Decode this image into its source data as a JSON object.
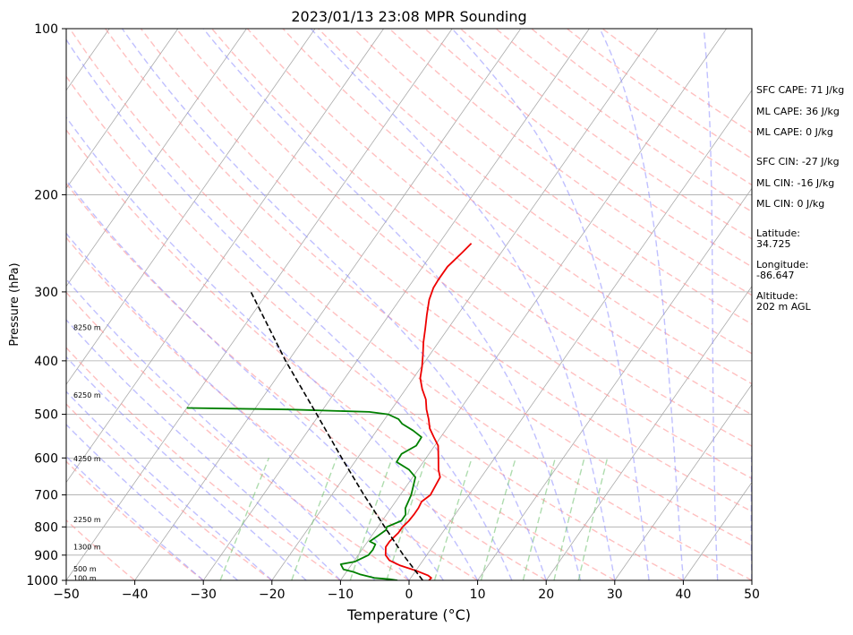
{
  "chart_data": {
    "type": "line",
    "title": "2023/01/13 23:08 MPR Sounding",
    "xlabel": "Temperature (°C)",
    "ylabel": "Pressure (hPa)",
    "xlim": [
      -50,
      50
    ],
    "ylim_pressure": [
      1000,
      100
    ],
    "y_scale": "log",
    "x_ticks": [
      -50,
      -40,
      -30,
      -20,
      -10,
      0,
      10,
      20,
      30,
      40,
      50
    ],
    "x_tick_labels": [
      "−50",
      "−40",
      "−30",
      "−20",
      "−10",
      "0",
      "10",
      "20",
      "30",
      "40",
      "50"
    ],
    "y_ticks": [
      1000,
      900,
      800,
      700,
      600,
      500,
      400,
      300,
      200,
      100
    ],
    "y_tick_labels": [
      "1000",
      "900",
      "800",
      "700",
      "600",
      "500",
      "400",
      "300",
      "200",
      "100"
    ],
    "horizontal_grid": true,
    "colors": {
      "temperature": "#ee0000",
      "dewpoint": "#008000",
      "parcel": "#000000",
      "isotherm": "#aaaaaa",
      "dry_adiabat": "#ff8c8c",
      "moist_adiabat": "#8c8cff",
      "mixing_ratio": "#6cbf6c"
    },
    "series": [
      {
        "key": "temperature",
        "points": [
          [
            2.9,
            1000
          ],
          [
            3.0,
            990
          ],
          [
            2.3,
            980
          ],
          [
            0.0,
            960
          ],
          [
            -2.8,
            940
          ],
          [
            -4.9,
            920
          ],
          [
            -6.0,
            900
          ],
          [
            -6.8,
            870
          ],
          [
            -6.8,
            850
          ],
          [
            -6.4,
            820
          ],
          [
            -6.4,
            800
          ],
          [
            -6.1,
            780
          ],
          [
            -6.0,
            760
          ],
          [
            -6.0,
            740
          ],
          [
            -6.2,
            720
          ],
          [
            -5.6,
            700
          ],
          [
            -6.0,
            650
          ],
          [
            -7.0,
            630
          ],
          [
            -8.2,
            600
          ],
          [
            -9.5,
            570
          ],
          [
            -11.0,
            550
          ],
          [
            -12.5,
            530
          ],
          [
            -13.6,
            510
          ],
          [
            -14.9,
            490
          ],
          [
            -16.0,
            470
          ],
          [
            -17.6,
            450
          ],
          [
            -19.0,
            430
          ],
          [
            -19.9,
            410
          ],
          [
            -21.0,
            390
          ],
          [
            -22.2,
            370
          ],
          [
            -23.3,
            350
          ],
          [
            -24.5,
            330
          ],
          [
            -25.7,
            310
          ],
          [
            -26.3,
            295
          ],
          [
            -26.4,
            285
          ],
          [
            -26.4,
            270
          ],
          [
            -25.7,
            255
          ],
          [
            -25.3,
            245
          ]
        ]
      },
      {
        "key": "dewpoint",
        "points": [
          [
            -1.7,
            1000
          ],
          [
            -3.0,
            995
          ],
          [
            -5.3,
            990
          ],
          [
            -7.8,
            975
          ],
          [
            -9.0,
            965
          ],
          [
            -10.7,
            955
          ],
          [
            -11.6,
            935
          ],
          [
            -9.8,
            925
          ],
          [
            -8.5,
            900
          ],
          [
            -8.4,
            880
          ],
          [
            -8.6,
            860
          ],
          [
            -9.7,
            850
          ],
          [
            -9.1,
            830
          ],
          [
            -8.5,
            810
          ],
          [
            -8.7,
            800
          ],
          [
            -7.2,
            780
          ],
          [
            -7.2,
            760
          ],
          [
            -7.9,
            740
          ],
          [
            -8.4,
            700
          ],
          [
            -9.6,
            650
          ],
          [
            -11.3,
            630
          ],
          [
            -13.9,
            610
          ],
          [
            -14.0,
            590
          ],
          [
            -12.7,
            570
          ],
          [
            -12.8,
            550
          ],
          [
            -14.7,
            535
          ],
          [
            -17.0,
            520
          ],
          [
            -18.0,
            510
          ],
          [
            -20.0,
            500
          ],
          [
            -23.0,
            495
          ],
          [
            -35.0,
            490
          ],
          [
            -50.0,
            487
          ]
        ]
      },
      {
        "key": "parcel",
        "points": [
          [
            2.0,
            1000
          ],
          [
            -3.4,
            900
          ],
          [
            -9.0,
            800
          ],
          [
            -15.3,
            700
          ],
          [
            -22.3,
            600
          ],
          [
            -30.4,
            500
          ],
          [
            -40.4,
            400
          ],
          [
            -52.5,
            300
          ]
        ]
      }
    ],
    "height_labels": [
      {
        "text": "100 m",
        "p": 990
      },
      {
        "text": "500 m",
        "p": 953
      },
      {
        "text": "1300 m",
        "p": 869
      },
      {
        "text": "2250 m",
        "p": 776
      },
      {
        "text": "4250 m",
        "p": 602
      },
      {
        "text": "6250 m",
        "p": 461
      },
      {
        "text": "8250 m",
        "p": 348
      }
    ],
    "annotations": [
      "SFC CAPE: 71 J/kg",
      "ML CAPE: 36 J/kg",
      "ML CAPE: 0 J/kg",
      "SFC CIN: -27 J/kg",
      "ML CIN: -16 J/kg",
      "ML CIN: 0 J/kg",
      "Latitude:",
      "34.725",
      "Longitude:",
      "-86.647",
      "Altitude:",
      "202 m AGL"
    ]
  }
}
